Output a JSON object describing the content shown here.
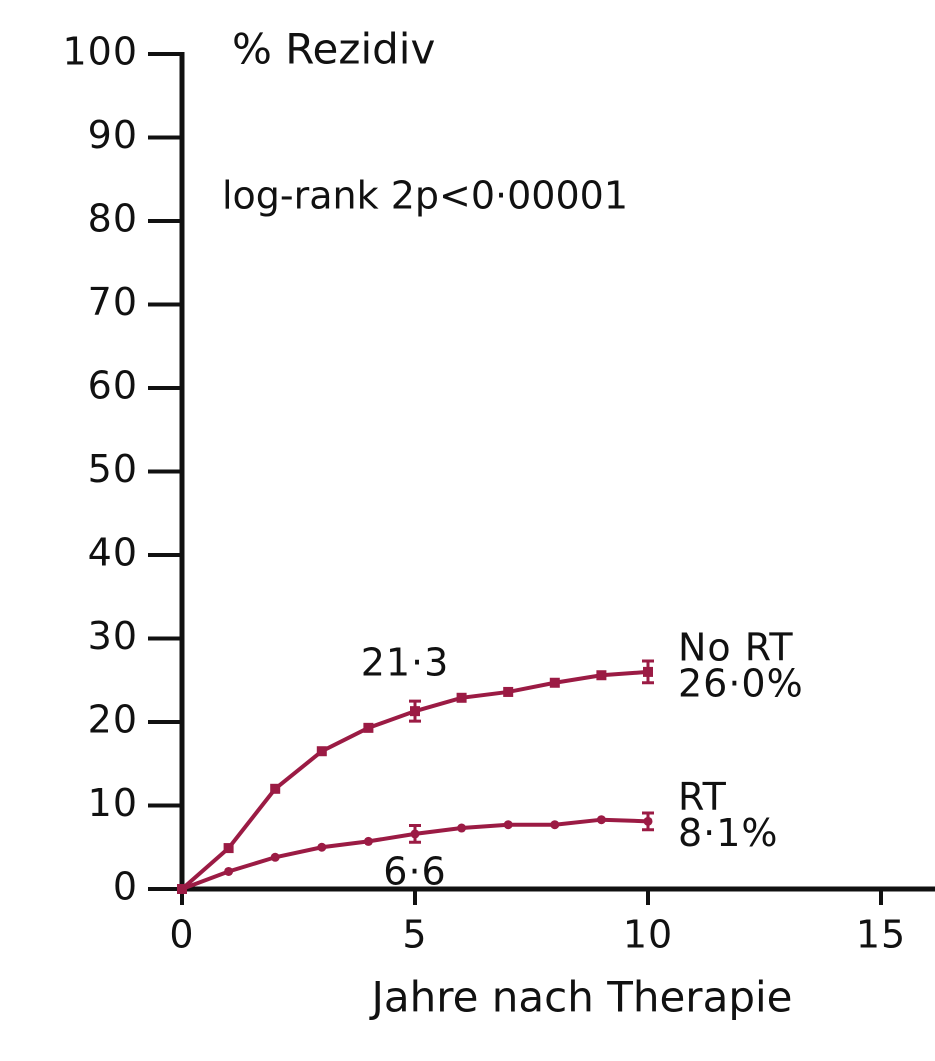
{
  "chart_data": {
    "type": "line",
    "ylabel": "% Rezidiv",
    "xlabel": "Jahre nach Therapie",
    "annotation": "log-rank 2p<0·00001",
    "x": [
      0,
      1,
      2,
      3,
      4,
      5,
      6,
      7,
      8,
      9,
      10
    ],
    "series": [
      {
        "name": "No RT",
        "color": "#9b1b44",
        "marker": "square",
        "values": [
          0,
          4.9,
          12,
          16.5,
          19.3,
          21.3,
          22.9,
          23.6,
          24.7,
          25.6,
          26.0
        ],
        "errors": [
          null,
          null,
          null,
          null,
          null,
          1.2,
          null,
          null,
          null,
          null,
          1.3
        ],
        "value_labels": [
          null,
          null,
          null,
          null,
          null,
          "21·3",
          null,
          null,
          null,
          null,
          "26·0%"
        ]
      },
      {
        "name": "RT",
        "color": "#9b1b44",
        "marker": "circle",
        "values": [
          0,
          2.1,
          3.8,
          5.0,
          5.7,
          6.6,
          7.3,
          7.7,
          7.7,
          8.3,
          8.1
        ],
        "errors": [
          null,
          null,
          null,
          null,
          null,
          1.0,
          null,
          null,
          null,
          null,
          1.0
        ],
        "value_labels": [
          null,
          null,
          null,
          null,
          null,
          "6·6",
          null,
          null,
          null,
          null,
          "8·1%"
        ]
      }
    ],
    "xlim": [
      0,
      16
    ],
    "ylim": [
      0,
      100
    ],
    "xticks": [
      0,
      5,
      10,
      15
    ],
    "yticks": [
      0,
      10,
      20,
      30,
      40,
      50,
      60,
      70,
      80,
      90,
      100
    ]
  }
}
